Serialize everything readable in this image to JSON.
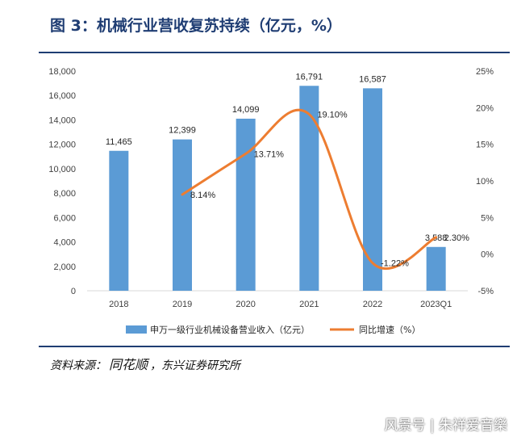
{
  "title": "图 3：机械行业营收复苏持续（亿元，%）",
  "source": {
    "prefix": "资料来源：",
    "main": "同花顺",
    "suffix": "，东兴证券研究所"
  },
  "watermark": "风景号 | 朱祥爱音樂",
  "colors": {
    "bar": "#5b9bd5",
    "line": "#ed7d31",
    "title": "#1f3d73"
  },
  "chart_data": {
    "type": "bar",
    "categories": [
      "2018",
      "2019",
      "2020",
      "2021",
      "2022",
      "2023Q1"
    ],
    "series": [
      {
        "name": "申万一级行业机械设备营业收入（亿元）",
        "type": "bar",
        "axis": "left",
        "values": [
          11465,
          12399,
          14099,
          16791,
          16587,
          3588
        ],
        "labels": [
          "11,465",
          "12,399",
          "14,099",
          "16,791",
          "16,587",
          "3,588"
        ]
      },
      {
        "name": "同比增速（%）",
        "type": "line",
        "axis": "right",
        "values": [
          null,
          8.14,
          13.71,
          19.1,
          -1.22,
          2.3
        ],
        "labels": [
          "",
          "8.14%",
          "13.71%",
          "19.10%",
          "-1.22%",
          "2.30%"
        ]
      }
    ],
    "y_left": {
      "min": 0,
      "max": 18000,
      "ticks": [
        "0",
        "2,000",
        "4,000",
        "6,000",
        "8,000",
        "10,000",
        "12,000",
        "14,000",
        "16,000",
        "18,000"
      ]
    },
    "y_right": {
      "min": -5,
      "max": 25,
      "ticks": [
        "-5%",
        "0%",
        "5%",
        "10%",
        "15%",
        "20%",
        "25%"
      ]
    },
    "legend_position": "bottom",
    "grid": false
  }
}
